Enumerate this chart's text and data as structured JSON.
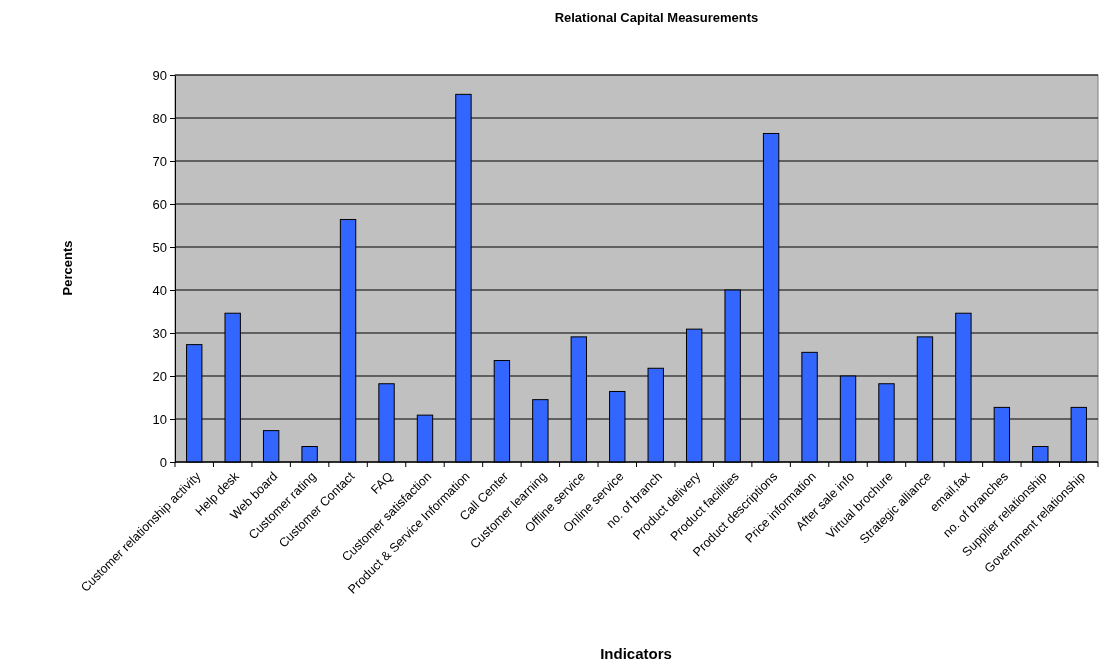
{
  "chart_data": {
    "type": "bar",
    "title": "Relational Capital Measurements",
    "xlabel": "Indicators",
    "ylabel": "Percents",
    "categories": [
      "Customer relationship activity",
      "Help desk",
      "Web board",
      "Customer rating",
      "Customer Contact",
      "FAQ",
      "Customer satisfaction",
      "Product & Service Information",
      "Call Center",
      "Customer learning",
      "Offline service",
      "Online service",
      "no. of branch",
      "Product delivery",
      "Product facilities",
      "Product descriptions",
      "Price information",
      "After sale info",
      "Virtual brochure",
      "Strategic alliance",
      "email,fax",
      "no. of branches",
      "Supplier relationship",
      "Government relationship"
    ],
    "values": [
      27.3,
      34.6,
      7.3,
      3.6,
      56.4,
      18.2,
      10.9,
      85.5,
      23.6,
      14.5,
      29.1,
      16.4,
      21.8,
      30.9,
      40,
      76.4,
      25.5,
      20,
      18.2,
      29.1,
      34.6,
      12.7,
      3.6,
      12.7
    ],
    "color": "#3366ff",
    "ylim": [
      0,
      90
    ],
    "yticks": [
      0,
      10,
      20,
      30,
      40,
      50,
      60,
      70,
      80,
      90
    ],
    "grid": "y"
  }
}
